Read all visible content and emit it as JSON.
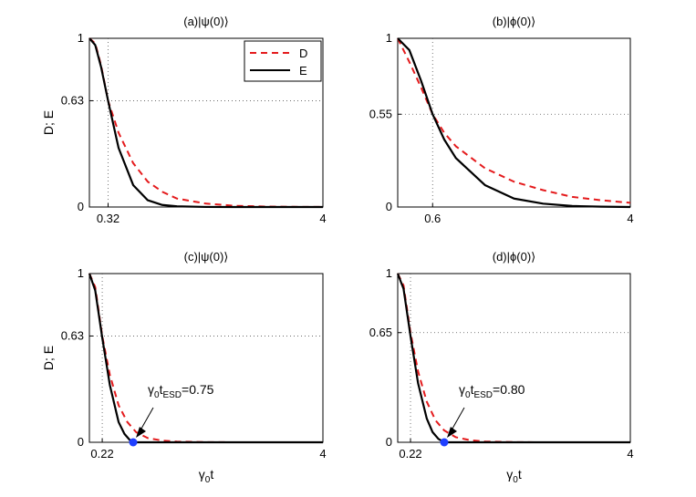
{
  "chart_data": [
    {
      "type": "line",
      "title": "(a)|ψ(0)⟩",
      "xlabel": "",
      "ylabel": "D; E",
      "xlim": [
        0,
        4
      ],
      "ylim": [
        0,
        1
      ],
      "xticks": [
        "0.32",
        "4"
      ],
      "yticks": [
        "0",
        "0.63",
        "1"
      ],
      "marker_x": 0.32,
      "marker_y": 0.63,
      "legend": {
        "position": "top-right",
        "entries": [
          "D",
          "E"
        ]
      },
      "series": [
        {
          "name": "D",
          "style": "dashed",
          "color": "#e41a1c",
          "x": [
            0,
            0.1,
            0.2,
            0.32,
            0.5,
            0.75,
            1.0,
            1.25,
            1.5,
            2.0,
            2.5,
            3.0,
            3.5,
            4.0
          ],
          "y": [
            1,
            0.97,
            0.84,
            0.63,
            0.44,
            0.26,
            0.15,
            0.09,
            0.05,
            0.02,
            0.007,
            0.003,
            0.001,
            0.0004
          ]
        },
        {
          "name": "E",
          "style": "solid",
          "color": "#000000",
          "x": [
            0,
            0.1,
            0.2,
            0.32,
            0.5,
            0.75,
            1.0,
            1.25,
            1.5,
            2.0,
            2.5,
            3.0,
            3.5,
            4.0
          ],
          "y": [
            1,
            0.96,
            0.83,
            0.63,
            0.35,
            0.13,
            0.04,
            0.012,
            0.004,
            0.0004,
            0,
            0,
            0,
            0
          ]
        }
      ]
    },
    {
      "type": "line",
      "title": "(b)|ϕ(0)⟩",
      "xlabel": "",
      "ylabel": "",
      "xlim": [
        0,
        4
      ],
      "ylim": [
        0,
        1
      ],
      "xticks": [
        "0.6",
        "4"
      ],
      "yticks": [
        "0",
        "0.55",
        "1"
      ],
      "marker_x": 0.6,
      "marker_y": 0.55,
      "series": [
        {
          "name": "D",
          "style": "dashed",
          "color": "#e41a1c",
          "x": [
            0,
            0.2,
            0.4,
            0.6,
            0.8,
            1.0,
            1.5,
            2.0,
            2.5,
            3.0,
            3.5,
            4.0
          ],
          "y": [
            1,
            0.86,
            0.71,
            0.55,
            0.44,
            0.36,
            0.23,
            0.15,
            0.1,
            0.06,
            0.04,
            0.025
          ]
        },
        {
          "name": "E",
          "style": "solid",
          "color": "#000000",
          "x": [
            0,
            0.2,
            0.4,
            0.6,
            0.8,
            1.0,
            1.5,
            2.0,
            2.5,
            3.0,
            3.5,
            4.0
          ],
          "y": [
            1,
            0.93,
            0.75,
            0.55,
            0.4,
            0.29,
            0.13,
            0.05,
            0.02,
            0.006,
            0.002,
            0
          ]
        }
      ]
    },
    {
      "type": "line",
      "title": "(c)|ψ(0)⟩",
      "xlabel": "γ₀t",
      "ylabel": "D; E",
      "xlim": [
        0,
        4
      ],
      "ylim": [
        0,
        1
      ],
      "xticks": [
        "0.22",
        "4"
      ],
      "yticks": [
        "0",
        "0.63",
        "1"
      ],
      "marker_x": 0.22,
      "marker_y": 0.63,
      "esd_point": 0.75,
      "annotation": "γ0tESD=0.75",
      "series": [
        {
          "name": "D",
          "style": "dashed",
          "color": "#e41a1c",
          "x": [
            0,
            0.1,
            0.22,
            0.35,
            0.5,
            0.65,
            0.8,
            1.0,
            1.25,
            1.5,
            2.0,
            2.5,
            3.0,
            3.5,
            4.0
          ],
          "y": [
            1,
            0.92,
            0.63,
            0.4,
            0.22,
            0.12,
            0.06,
            0.025,
            0.01,
            0.004,
            0.001,
            0,
            0,
            0,
            0
          ]
        },
        {
          "name": "E",
          "style": "solid",
          "color": "#000000",
          "x": [
            0,
            0.1,
            0.22,
            0.35,
            0.5,
            0.6,
            0.7,
            0.75,
            1.0,
            2.0,
            4.0
          ],
          "y": [
            1,
            0.9,
            0.62,
            0.34,
            0.12,
            0.05,
            0.01,
            0,
            0,
            0,
            0
          ]
        }
      ]
    },
    {
      "type": "line",
      "title": "(d)|ϕ(0)⟩",
      "xlabel": "γ₀t",
      "ylabel": "",
      "xlim": [
        0,
        4
      ],
      "ylim": [
        0,
        1
      ],
      "xticks": [
        "0.22",
        "4"
      ],
      "yticks": [
        "0",
        "0.65",
        "1"
      ],
      "marker_x": 0.22,
      "marker_y": 0.65,
      "esd_point": 0.8,
      "annotation": "γ0tESD=0.80",
      "series": [
        {
          "name": "D",
          "style": "dashed",
          "color": "#e41a1c",
          "x": [
            0,
            0.1,
            0.22,
            0.35,
            0.5,
            0.65,
            0.8,
            1.0,
            1.25,
            1.5,
            2.0,
            2.5,
            3.0,
            3.5,
            4.0
          ],
          "y": [
            1,
            0.93,
            0.65,
            0.42,
            0.24,
            0.13,
            0.07,
            0.03,
            0.012,
            0.005,
            0.001,
            0,
            0,
            0,
            0
          ]
        },
        {
          "name": "E",
          "style": "solid",
          "color": "#000000",
          "x": [
            0,
            0.1,
            0.22,
            0.35,
            0.5,
            0.6,
            0.7,
            0.8,
            1.0,
            2.0,
            4.0
          ],
          "y": [
            1,
            0.91,
            0.63,
            0.35,
            0.14,
            0.06,
            0.02,
            0,
            0,
            0,
            0
          ]
        }
      ]
    }
  ],
  "colors": {
    "D": "#e41a1c",
    "E": "#000000",
    "esd_marker": "#1f3fff",
    "grid": "#555555"
  }
}
